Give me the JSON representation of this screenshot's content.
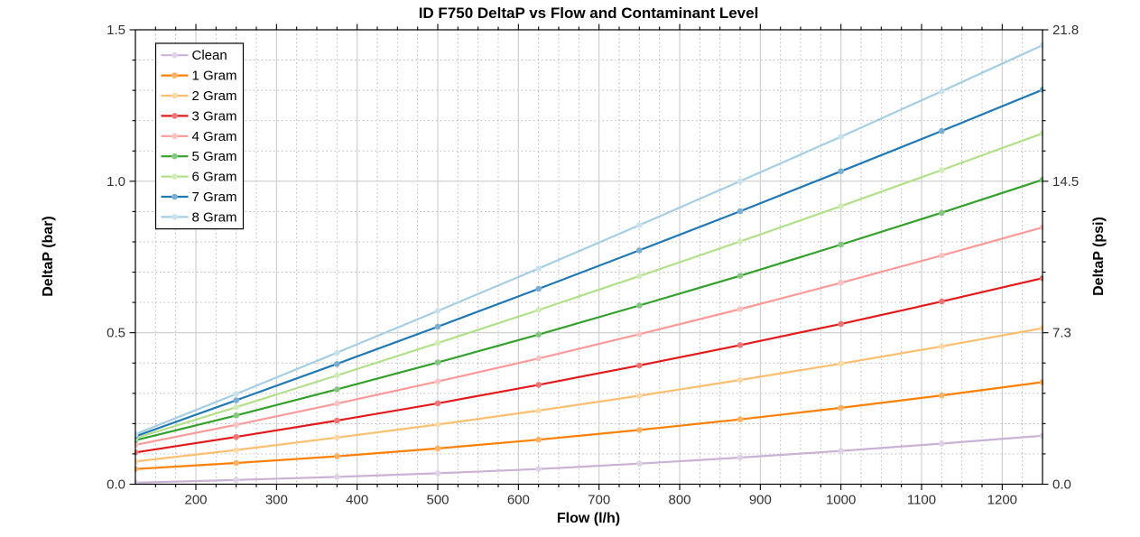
{
  "title": "ID F750 DeltaP vs Flow and Contaminant Level",
  "chart_data": {
    "type": "line",
    "title": "ID F750 DeltaP vs Flow and Contaminant Level",
    "xlabel": "Flow (l/h)",
    "ylabel_left": "DeltaP (bar)",
    "ylabel_right": "DeltaP (psi)",
    "x": [
      125,
      250,
      375,
      500,
      625,
      750,
      875,
      1000,
      1125,
      1250
    ],
    "xlim": [
      125,
      1250
    ],
    "ylim": [
      0,
      1.5
    ],
    "x_tick_values": [
      200,
      300,
      400,
      500,
      600,
      700,
      800,
      900,
      1000,
      1100,
      1200
    ],
    "x_tick_labels": [
      "200",
      "300",
      "400",
      "500",
      "600",
      "700",
      "800",
      "900",
      "1000",
      "1100",
      "1200"
    ],
    "x_minor_step": 25,
    "y_left_tick_values": [
      0,
      0.5,
      1.0,
      1.5
    ],
    "y_left_tick_labels": [
      "0.0",
      "0.5",
      "1.0",
      "1.5"
    ],
    "y_right_tick_labels": [
      "0.0",
      "7.3",
      "14.5",
      "21.8"
    ],
    "y_minor_step": 0.1,
    "grid": "major solid, minor dotted, both axes",
    "legend_position": "upper left",
    "series": [
      {
        "name": "Clean",
        "color": "#CAB2D6",
        "values": [
          0.005,
          0.014,
          0.024,
          0.036,
          0.05,
          0.068,
          0.088,
          0.11,
          0.134,
          0.16
        ]
      },
      {
        "name": "1 Gram",
        "color": "#FF7F00",
        "values": [
          0.05,
          0.07,
          0.092,
          0.118,
          0.147,
          0.179,
          0.214,
          0.252,
          0.293,
          0.337
        ]
      },
      {
        "name": "2 Gram",
        "color": "#FDBF6F",
        "values": [
          0.075,
          0.113,
          0.154,
          0.197,
          0.243,
          0.292,
          0.344,
          0.398,
          0.455,
          0.515
        ]
      },
      {
        "name": "3 Gram",
        "color": "#E31A1C",
        "values": [
          0.105,
          0.156,
          0.21,
          0.267,
          0.328,
          0.392,
          0.459,
          0.529,
          0.603,
          0.68
        ]
      },
      {
        "name": "4 Gram",
        "color": "#FB9A99",
        "values": [
          0.13,
          0.196,
          0.266,
          0.339,
          0.415,
          0.495,
          0.578,
          0.665,
          0.755,
          0.848
        ]
      },
      {
        "name": "5 Gram",
        "color": "#33A02C",
        "values": [
          0.145,
          0.227,
          0.313,
          0.402,
          0.494,
          0.59,
          0.688,
          0.791,
          0.896,
          1.005
        ]
      },
      {
        "name": "6 Gram",
        "color": "#B2DF8A",
        "values": [
          0.152,
          0.254,
          0.359,
          0.466,
          0.575,
          0.687,
          0.801,
          0.918,
          1.037,
          1.158
        ]
      },
      {
        "name": "7 Gram",
        "color": "#1F78B4",
        "values": [
          0.158,
          0.277,
          0.397,
          0.52,
          0.645,
          0.772,
          0.901,
          1.033,
          1.166,
          1.302
        ]
      },
      {
        "name": "8 Gram",
        "color": "#A6CEE3",
        "values": [
          0.165,
          0.298,
          0.434,
          0.572,
          0.712,
          0.855,
          1.0,
          1.147,
          1.297,
          1.449
        ]
      }
    ],
    "style": {
      "frame_color": "#000000",
      "tick_label_color": "#323232",
      "major_grid_color": "#cccccc",
      "minor_grid_color": "#b5b5b5",
      "legend_border_color": "#000000",
      "legend_background": "#ffffff"
    }
  }
}
